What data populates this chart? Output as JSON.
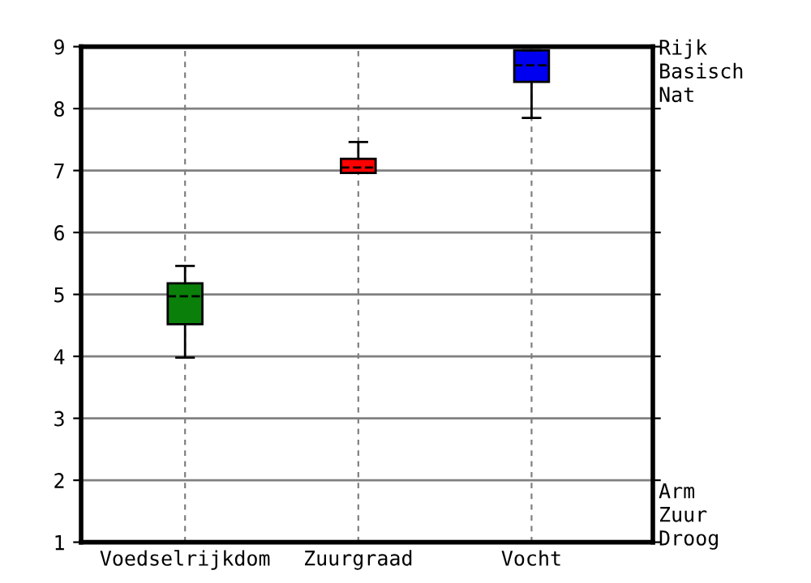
{
  "chart_data": {
    "type": "box",
    "categories": [
      "Voedselrijkdom",
      "Zuurgraad",
      "Vocht"
    ],
    "colors": [
      "#0a800a",
      "#ff0000",
      "#0000f0"
    ],
    "boxes": [
      {
        "low": 3.98,
        "q1": 4.52,
        "median": 4.97,
        "q3": 5.18,
        "high": 5.46
      },
      {
        "low": 6.96,
        "q1": 6.96,
        "median": 7.05,
        "q3": 7.19,
        "high": 7.46
      },
      {
        "low": 7.85,
        "q1": 8.43,
        "median": 8.7,
        "q3": 8.94,
        "high": 8.94
      }
    ],
    "ylim": [
      1,
      9
    ],
    "yticks": [
      1,
      2,
      3,
      4,
      5,
      6,
      7,
      8,
      9
    ],
    "grid": true,
    "annotations": [
      "Rijk\nBasisch\nNat",
      "Arm\nZuur\nDroog"
    ]
  }
}
